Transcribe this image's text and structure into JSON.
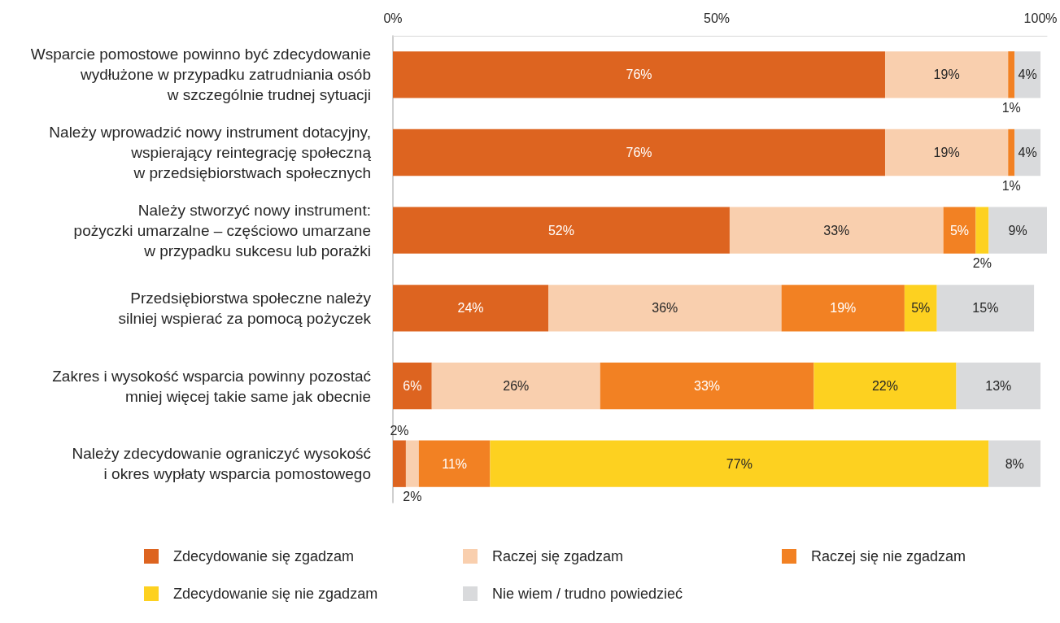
{
  "chart_data": {
    "type": "bar",
    "orientation": "horizontal",
    "stacked": true,
    "categories": [
      "Wsparcie pomostowe powinno być zdecydowanie\nwydłużone w przypadku zatrudniania osób\nw szczególnie trudnej sytuacji",
      "Należy wprowadzić nowy instrument dotacyjny,\nwspierający reintegrację społeczną\nw przedsiębiorstwach społecznych",
      "Należy stworzyć nowy instrument:\npożyczki umarzalne – częściowo umarzane\nw przypadku sukcesu lub porażki",
      "Przedsiębiorstwa społeczne należy\nsilniej wspierać za pomocą pożyczek",
      "Zakres i wysokość wsparcia powinny pozostać\nmniej więcej takie same jak obecnie",
      "Należy zdecydowanie ograniczyć wysokość\ni okres wypłaty wsparcia pomostowego"
    ],
    "series": [
      {
        "name": "Zdecydowanie się zgadzam",
        "color": "#dd6420",
        "values": [
          76,
          76,
          52,
          24,
          6,
          2
        ],
        "value_labels": [
          "76%",
          "76%",
          "52%",
          "24%",
          "6%",
          "2%"
        ]
      },
      {
        "name": "Raczej się zgadzam",
        "color": "#f9cfae",
        "values": [
          19,
          19,
          33,
          36,
          26,
          2
        ],
        "value_labels": [
          "19%",
          "19%",
          "33%",
          "36%",
          "26%",
          "2%"
        ]
      },
      {
        "name": "Raczej się nie zgadzam",
        "color": "#f28123",
        "values": [
          1,
          1,
          5,
          19,
          33,
          11
        ],
        "value_labels": [
          "1%",
          "1%",
          "5%",
          "19%",
          "33%",
          "11%"
        ]
      },
      {
        "name": "Zdecydowanie się nie zgadzam",
        "color": "#fdd120",
        "values": [
          null,
          null,
          2,
          5,
          22,
          77
        ],
        "value_labels": [
          null,
          null,
          "2%",
          "5%",
          "22%",
          "77%"
        ]
      },
      {
        "name": "Nie wiem / trudno powiedzieć",
        "color": "#d9dadc",
        "values": [
          4,
          4,
          9,
          15,
          13,
          8
        ],
        "value_labels": [
          "4%",
          "4%",
          "9%",
          "15%",
          "13%",
          "8%"
        ]
      }
    ],
    "xlim": [
      0,
      101
    ],
    "xticks": [
      {
        "value": 0,
        "label": "0%"
      },
      {
        "value": 50,
        "label": "50%"
      },
      {
        "value": 100,
        "label": "100%"
      }
    ],
    "grid": false,
    "legend": "bottom"
  }
}
